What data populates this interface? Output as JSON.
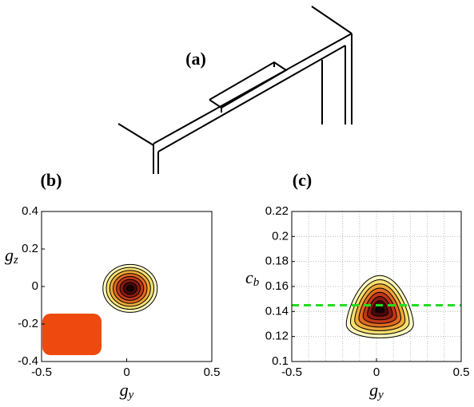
{
  "panels": [
    "(a)",
    "(b)",
    "(c)"
  ],
  "chart_data": [
    {
      "type": "contour",
      "xlabel": [
        "g",
        "y"
      ],
      "ylabel": [
        "g",
        "z"
      ],
      "xlim": [
        -0.5,
        0.5
      ],
      "xticks": [
        -0.5,
        0,
        0.5
      ],
      "ylim": [
        -0.4,
        0.4
      ],
      "yticks": [
        -0.4,
        -0.2,
        0,
        0.2,
        0.4
      ],
      "peak": [
        0.02,
        -0.01
      ],
      "grid": false
    },
    {
      "type": "contour",
      "xlabel": [
        "g",
        "y"
      ],
      "ylabel": [
        "c",
        "b"
      ],
      "xlim": [
        -0.5,
        0.5
      ],
      "xticks": [
        -0.5,
        0,
        0.5
      ],
      "ylim": [
        0.1,
        0.22
      ],
      "yticks": [
        0.1,
        0.12,
        0.14,
        0.16,
        0.18,
        0.2,
        0.22
      ],
      "peak": [
        0.02,
        0.142
      ],
      "hline": 0.145,
      "hline_color": "#22dd22",
      "grid": true
    }
  ]
}
